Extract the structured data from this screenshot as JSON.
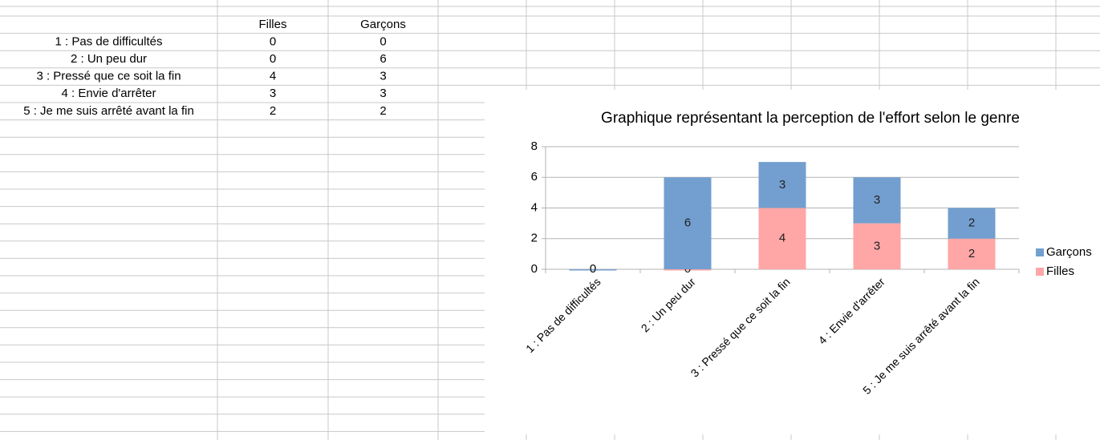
{
  "table": {
    "columns": [
      "Filles",
      "Garçons"
    ],
    "rows": [
      [
        "1 : Pas de difficultés",
        0,
        0
      ],
      [
        "2 : Un peu dur",
        0,
        6
      ],
      [
        "3 : Pressé que ce soit la fin",
        4,
        3
      ],
      [
        "4 : Envie d'arrêter",
        3,
        3
      ],
      [
        "5 : Je me suis arrêté avant la fin",
        2,
        2
      ]
    ]
  },
  "chart_data": {
    "type": "stacked_bar",
    "title": "Graphique représentant la perception de l'effort selon le genre",
    "categories": [
      "1 : Pas de difficultés",
      "2 : Un peu dur",
      "3 : Pressé que ce soit la fin",
      "4 : Envie d'arrêter",
      "5 : Je me suis arrêté avant la fin"
    ],
    "series": [
      {
        "name": "Filles",
        "color": "#ffa6a6",
        "values": [
          0,
          0,
          4,
          3,
          2
        ]
      },
      {
        "name": "Garçons",
        "color": "#729fcf",
        "values": [
          0,
          6,
          3,
          3,
          2
        ]
      }
    ],
    "ylim": [
      0,
      8
    ],
    "yticks": [
      0,
      2,
      4,
      6,
      8
    ],
    "grid": true,
    "legend": "right",
    "data_labels": true
  }
}
